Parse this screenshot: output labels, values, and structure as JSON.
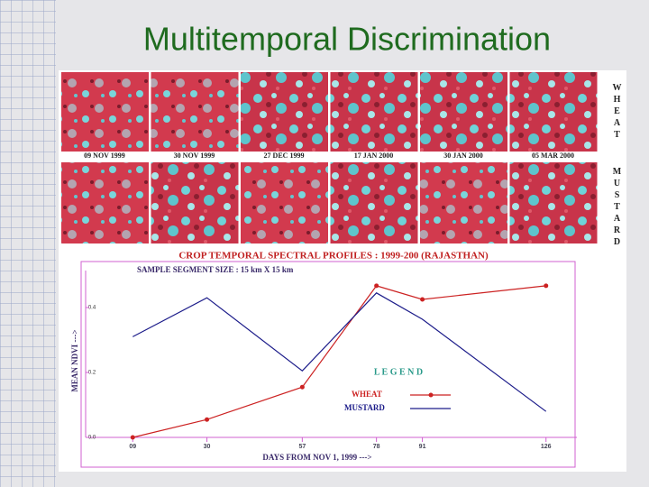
{
  "title": "Multitemporal Discrimination",
  "image_dates": [
    "09 NOV 1999",
    "30 NOV 1999",
    "27 DEC 1999",
    "17 JAN 2000",
    "30 JAN 2000",
    "05 MAR 2000"
  ],
  "row_labels": [
    "WHEAT",
    "MUSTARD"
  ],
  "chart_data": {
    "type": "line",
    "title": "CROP TEMPORAL SPECTRAL PROFILES : 1999-200 (RAJASTHAN)",
    "subtitle": "SAMPLE SEGMENT SIZE : 15 km X 15 km",
    "x_label": "DAYS FROM NOV 1, 1999 --->",
    "y_label": "MEAN NDVI --->",
    "legend_title": "L E G E N D",
    "x": [
      9,
      30,
      57,
      78,
      91,
      126
    ],
    "xlim": [
      0,
      135
    ],
    "xticks": [
      {
        "value": 9,
        "label": "09"
      },
      30,
      57,
      78,
      91,
      126
    ],
    "ylim": [
      0,
      0.5
    ],
    "yticks": [
      {
        "value": 0,
        "label": "0.0"
      },
      0.2,
      0.4
    ],
    "series": [
      {
        "name": "WHEAT",
        "color": "#cc2222",
        "values": [
          0.0,
          0.055,
          0.155,
          0.467,
          0.425,
          0.467
        ]
      },
      {
        "name": "MUSTARD",
        "color": "#1c1c8a",
        "values": [
          0.31,
          0.43,
          0.205,
          0.445,
          0.364,
          0.08
        ]
      }
    ]
  }
}
